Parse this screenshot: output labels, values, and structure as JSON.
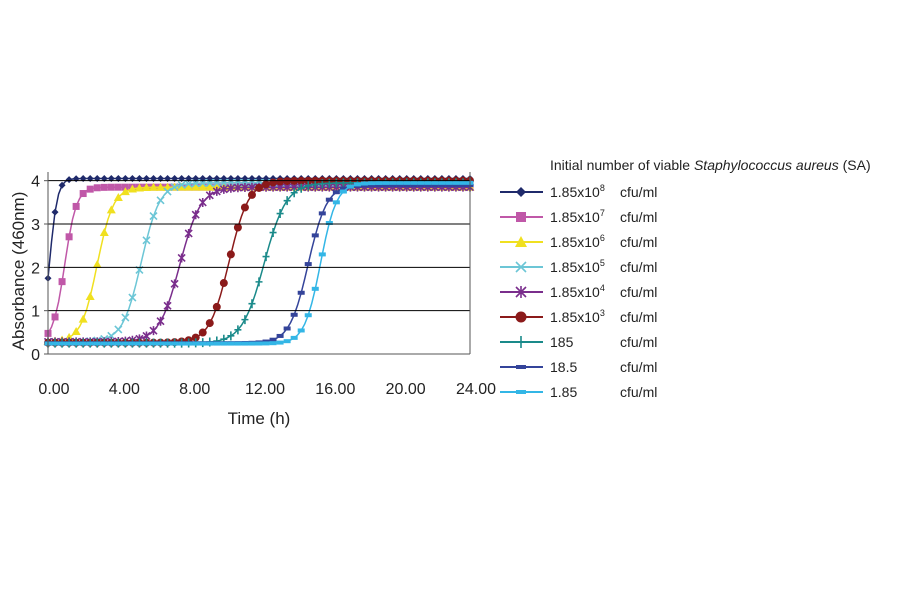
{
  "chart_data": {
    "type": "line",
    "xlabel": "Time (h)",
    "ylabel": "Absorbance (460nm)",
    "xlim": [
      0,
      24
    ],
    "ylim": [
      0,
      4.2
    ],
    "x_ticks": [
      "0.00",
      "4.00",
      "8.00",
      "12.00",
      "16.00",
      "20.00",
      "24.00"
    ],
    "y_ticks": [
      "0",
      "1",
      "2",
      "3",
      "4"
    ],
    "grid": "horizontal",
    "legend_title": {
      "prefix": "Initial number of viable ",
      "italic": "Staphylococcus aureus",
      "suffix": " (SA)"
    },
    "legend_position": "right",
    "series": [
      {
        "name": "1.85x10",
        "exp": "8",
        "unit": "cfu/ml",
        "color": "#1f2a6b",
        "marker": "diamond",
        "t_mid": 0.1,
        "k": 4.5,
        "plateau": 4.05,
        "base": 0.28
      },
      {
        "name": "1.85x10",
        "exp": "7",
        "unit": "cfu/ml",
        "color": "#c058a8",
        "marker": "square",
        "t_mid": 0.95,
        "k": 3.0,
        "plateau": 3.85,
        "base": 0.28
      },
      {
        "name": "1.85x10",
        "exp": "6",
        "unit": "cfu/ml",
        "color": "#f0e020",
        "marker": "triangle",
        "t_mid": 2.8,
        "k": 2.2,
        "plateau": 3.85,
        "base": 0.28
      },
      {
        "name": "1.85x10",
        "exp": "5",
        "unit": "cfu/ml",
        "color": "#6cc6d6",
        "marker": "x",
        "t_mid": 5.3,
        "k": 1.9,
        "plateau": 3.95,
        "base": 0.28
      },
      {
        "name": "1.85x10",
        "exp": "4",
        "unit": "cfu/ml",
        "color": "#7a2e8c",
        "marker": "star",
        "t_mid": 7.5,
        "k": 1.7,
        "plateau": 3.85,
        "base": 0.28
      },
      {
        "name": "1.85x10",
        "exp": "3",
        "unit": "cfu/ml",
        "color": "#8b1a1a",
        "marker": "circle",
        "t_mid": 10.3,
        "k": 1.8,
        "plateau": 4.0,
        "base": 0.26
      },
      {
        "name": "185",
        "exp": "",
        "unit": "cfu/ml",
        "color": "#1a8a8a",
        "marker": "plus",
        "t_mid": 12.3,
        "k": 1.6,
        "plateau": 3.95,
        "base": 0.25
      },
      {
        "name": "18.5",
        "exp": "",
        "unit": "cfu/ml",
        "color": "#34449a",
        "marker": "dash",
        "t_mid": 14.8,
        "k": 1.9,
        "plateau": 3.9,
        "base": 0.25
      },
      {
        "name": "1.85",
        "exp": "",
        "unit": "cfu/ml",
        "color": "#33b6e6",
        "marker": "dash",
        "t_mid": 15.5,
        "k": 2.2,
        "plateau": 3.95,
        "base": 0.24
      }
    ]
  }
}
